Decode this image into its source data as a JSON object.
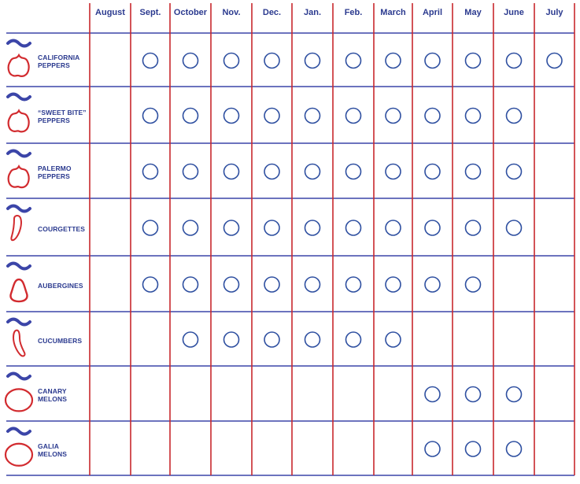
{
  "calendar": {
    "months": [
      "August",
      "Sept.",
      "October",
      "Nov.",
      "Dec.",
      "Jan.",
      "Feb.",
      "March",
      "April",
      "May",
      "June",
      "July"
    ],
    "colors": {
      "rule_blue": "#3b45a8",
      "rule_red": "#c8282d",
      "label_blue": "#2b3a8f",
      "icon_red": "#d22b2f",
      "circle_blue": "#2e4fa0"
    },
    "products": [
      {
        "name_lines": [
          "CALIFORNIA",
          "PEPPERS"
        ],
        "icon": "pepper-icon",
        "available": [
          false,
          true,
          true,
          true,
          true,
          true,
          true,
          true,
          true,
          true,
          true,
          true
        ]
      },
      {
        "name_lines": [
          "“SWEET BITE”",
          "PEPPERS"
        ],
        "icon": "pepper-icon",
        "available": [
          false,
          true,
          true,
          true,
          true,
          true,
          true,
          true,
          true,
          true,
          true,
          false
        ]
      },
      {
        "name_lines": [
          "PALERMO",
          "PEPPERS"
        ],
        "icon": "pepper-icon",
        "available": [
          false,
          true,
          true,
          true,
          true,
          true,
          true,
          true,
          true,
          true,
          true,
          false
        ]
      },
      {
        "name_lines": [
          "COURGETTES"
        ],
        "icon": "courgette-icon",
        "available": [
          false,
          true,
          true,
          true,
          true,
          true,
          true,
          true,
          true,
          true,
          true,
          false
        ]
      },
      {
        "name_lines": [
          "AUBERGINES"
        ],
        "icon": "aubergine-icon",
        "available": [
          false,
          true,
          true,
          true,
          true,
          true,
          true,
          true,
          true,
          true,
          false,
          false
        ]
      },
      {
        "name_lines": [
          "CUCUMBERS"
        ],
        "icon": "cucumber-icon",
        "available": [
          false,
          false,
          true,
          true,
          true,
          true,
          true,
          true,
          false,
          false,
          false,
          false
        ]
      },
      {
        "name_lines": [
          "CANARY",
          "MELONS"
        ],
        "icon": "melon-icon",
        "available": [
          false,
          false,
          false,
          false,
          false,
          false,
          false,
          false,
          true,
          true,
          true,
          false
        ]
      },
      {
        "name_lines": [
          "GALIA",
          "MELONS"
        ],
        "icon": "melon-icon",
        "available": [
          false,
          false,
          false,
          false,
          false,
          false,
          false,
          false,
          true,
          true,
          true,
          false
        ]
      }
    ]
  }
}
